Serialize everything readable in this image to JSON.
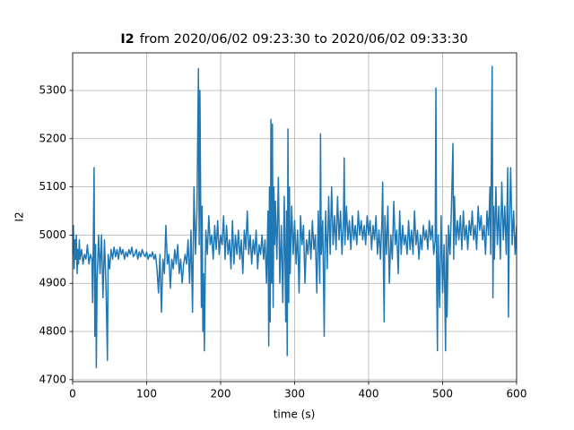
{
  "chart_data": {
    "type": "line",
    "title_bold": "I2",
    "title": "from 2020/06/02 09:23:30 to 2020/06/02 09:33:30",
    "xlabel": "time (s)",
    "ylabel": "I2",
    "xlim": [
      0,
      600
    ],
    "ylim": [
      4696,
      5378
    ],
    "xticks": [
      0,
      100,
      200,
      300,
      400,
      500,
      600
    ],
    "yticks": [
      4700,
      4800,
      4900,
      5000,
      5100,
      5200,
      5300
    ],
    "grid": true,
    "series": [
      {
        "color": "#1f77b4",
        "x": [
          0,
          1,
          2,
          3,
          4,
          5,
          6,
          7,
          8,
          9,
          10,
          12,
          14,
          16,
          18,
          20,
          22,
          24,
          26,
          27,
          28,
          29,
          30,
          31,
          32,
          33,
          35,
          37,
          39,
          41,
          43,
          45,
          47,
          48,
          50,
          52,
          54,
          56,
          58,
          60,
          62,
          64,
          66,
          68,
          70,
          72,
          74,
          76,
          78,
          80,
          82,
          84,
          86,
          88,
          90,
          92,
          94,
          96,
          98,
          100,
          102,
          104,
          106,
          108,
          110,
          112,
          114,
          116,
          118,
          120,
          122,
          124,
          126,
          128,
          130,
          132,
          134,
          136,
          138,
          140,
          142,
          144,
          146,
          148,
          150,
          152,
          154,
          156,
          158,
          160,
          162,
          164,
          166,
          168,
          170,
          171,
          172,
          173,
          174,
          175,
          176,
          177,
          178,
          179,
          180,
          182,
          184,
          186,
          188,
          190,
          192,
          194,
          196,
          198,
          200,
          202,
          204,
          206,
          208,
          210,
          212,
          214,
          216,
          218,
          220,
          222,
          224,
          226,
          228,
          230,
          232,
          234,
          236,
          238,
          240,
          242,
          244,
          246,
          248,
          250,
          252,
          254,
          256,
          258,
          260,
          262,
          264,
          265,
          266,
          267,
          268,
          269,
          270,
          271,
          272,
          273,
          274,
          276,
          278,
          280,
          282,
          284,
          286,
          288,
          289,
          290,
          291,
          292,
          293,
          294,
          296,
          298,
          300,
          302,
          304,
          306,
          308,
          310,
          312,
          314,
          316,
          318,
          320,
          322,
          324,
          326,
          328,
          330,
          332,
          334,
          335,
          336,
          338,
          340,
          341,
          342,
          344,
          346,
          348,
          350,
          352,
          354,
          356,
          358,
          360,
          362,
          364,
          366,
          367,
          368,
          370,
          372,
          374,
          376,
          378,
          380,
          382,
          384,
          386,
          388,
          390,
          392,
          394,
          396,
          398,
          400,
          402,
          404,
          406,
          408,
          410,
          412,
          414,
          416,
          418,
          419,
          420,
          421,
          422,
          424,
          426,
          428,
          430,
          432,
          434,
          436,
          438,
          440,
          442,
          444,
          446,
          448,
          450,
          452,
          454,
          456,
          458,
          460,
          462,
          464,
          466,
          468,
          470,
          472,
          474,
          476,
          478,
          480,
          482,
          484,
          486,
          488,
          490,
          491,
          492,
          493,
          494,
          496,
          498,
          500,
          502,
          504,
          505,
          506,
          508,
          510,
          512,
          514,
          515,
          516,
          518,
          520,
          522,
          524,
          526,
          528,
          530,
          532,
          534,
          536,
          538,
          540,
          542,
          544,
          546,
          548,
          550,
          552,
          554,
          556,
          558,
          560,
          562,
          564,
          565,
          566,
          567,
          568,
          569,
          570,
          572,
          574,
          576,
          578,
          580,
          582,
          584,
          586,
          588,
          589,
          590,
          592,
          594,
          596,
          598,
          600
        ],
        "values": [
          4960,
          5020,
          4930,
          4990,
          4950,
          5000,
          4920,
          4970,
          4940,
          4990,
          4950,
          4970,
          4940,
          4960,
          4950,
          4980,
          4940,
          4960,
          4950,
          4860,
          5000,
          5140,
          4790,
          4980,
          4725,
          4900,
          5000,
          4920,
          5000,
          4870,
          4990,
          4900,
          4740,
          4960,
          4930,
          4970,
          4950,
          4975,
          4955,
          4970,
          4950,
          4975,
          4960,
          4970,
          4950,
          4965,
          4955,
          4970,
          4960,
          4975,
          4955,
          4960,
          4970,
          4950,
          4965,
          4955,
          4970,
          4960,
          4955,
          4965,
          4950,
          4960,
          4955,
          4965,
          4950,
          4960,
          4930,
          4880,
          4960,
          4840,
          4950,
          4920,
          5020,
          4940,
          4960,
          4890,
          4950,
          4930,
          4970,
          4940,
          4980,
          4920,
          4950,
          4900,
          4940,
          4960,
          4940,
          4990,
          4900,
          5010,
          4840,
          5100,
          4960,
          5050,
          5345,
          4980,
          5300,
          5080,
          4850,
          5060,
          4800,
          4920,
          4760,
          4900,
          5010,
          4960,
          5040,
          4980,
          5000,
          4950,
          5020,
          4970,
          5030,
          4960,
          5000,
          4980,
          5040,
          4950,
          5020,
          4960,
          4990,
          4930,
          5030,
          4940,
          5000,
          4960,
          5010,
          4950,
          4990,
          4920,
          5010,
          4970,
          5050,
          4960,
          5000,
          4940,
          4990,
          4960,
          5010,
          4930,
          4980,
          4960,
          5000,
          4950,
          4990,
          4900,
          5050,
          4770,
          5100,
          4820,
          5240,
          4900,
          5230,
          4850,
          5100,
          4980,
          5070,
          4950,
          5120,
          4900,
          5020,
          4860,
          5080,
          4820,
          5050,
          4750,
          5220,
          4860,
          5100,
          4920,
          5060,
          4960,
          5030,
          4940,
          5010,
          4880,
          5040,
          4980,
          5020,
          4900,
          4990,
          4960,
          5010,
          4950,
          5030,
          4970,
          5000,
          4880,
          5050,
          4900,
          5210,
          4960,
          5030,
          4790,
          4980,
          5050,
          4930,
          5080,
          4960,
          5100,
          4980,
          5040,
          4970,
          5080,
          4990,
          5050,
          4960,
          5030,
          5160,
          4980,
          5060,
          4990,
          5030,
          4970,
          5040,
          4990,
          5020,
          4980,
          5050,
          5000,
          5030,
          4990,
          5020,
          4980,
          5040,
          5000,
          5030,
          4970,
          5020,
          4990,
          5040,
          4960,
          5010,
          4950,
          5030,
          5110,
          4940,
          4820,
          5040,
          4960,
          5060,
          4900,
          5000,
          4950,
          5070,
          4980,
          5010,
          4920,
          5050,
          4960,
          5020,
          4980,
          5000,
          4960,
          5030,
          4970,
          5010,
          4960,
          5050,
          4980,
          5010,
          4950,
          5000,
          4970,
          5020,
          4990,
          5010,
          4970,
          5030,
          4990,
          5020,
          4960,
          4990,
          5305,
          4900,
          4760,
          5000,
          4850,
          5040,
          4880,
          4980,
          4760,
          5000,
          4830,
          5020,
          4960,
          5060,
          5190,
          4950,
          5080,
          4980,
          5030,
          4990,
          5040,
          4970,
          5050,
          4990,
          5020,
          4970,
          5030,
          5000,
          5050,
          4990,
          5020,
          4970,
          5060,
          5010,
          5040,
          4990,
          5020,
          4960,
          5050,
          5000,
          5100,
          4960,
          5180,
          5350,
          4870,
          5060,
          4950,
          5100,
          4980,
          5060,
          4950,
          5110,
          4990,
          5060,
          4960,
          5140,
          4830,
          5000,
          5140,
          4980,
          5050,
          4960,
          5020
        ]
      }
    ]
  }
}
